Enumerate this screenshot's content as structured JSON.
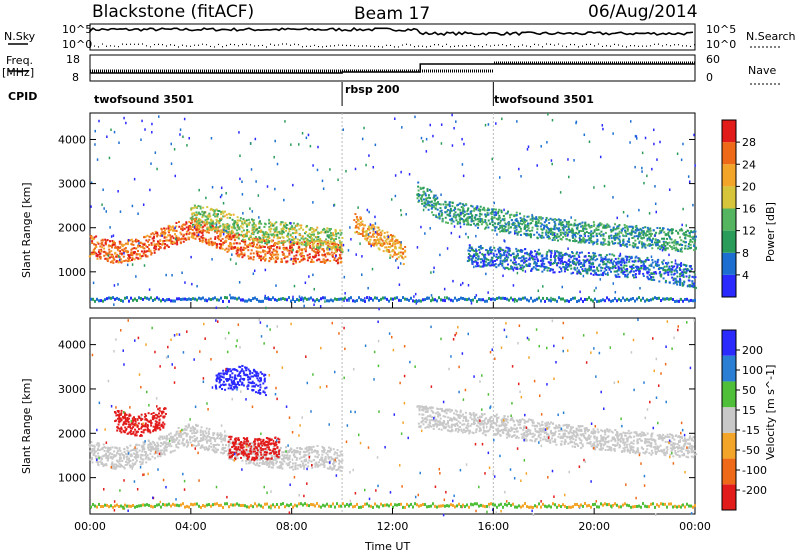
{
  "header": {
    "title_left": "Blackstone (fitACF)",
    "title_center": "Beam 17",
    "title_right": "06/Aug/2014"
  },
  "status_panel": {
    "nsky_label": "N.Sky",
    "nsearch_label": "N.Search",
    "freq_label": "Freq.",
    "freq_unit": "[MHz]",
    "nave_label": "Nave",
    "cpid_label": "CPID",
    "nsky_ticks": [
      "10^5",
      "10^0"
    ],
    "nsearch_ticks": [
      "10^5",
      "10^0"
    ],
    "freq_ticks": [
      "18",
      "8"
    ],
    "nave_ticks": [
      "60",
      "0"
    ],
    "cpid_segments": [
      {
        "label": "twofsound 3501",
        "start_hour": 0
      },
      {
        "label": "rbsp 200",
        "start_hour": 10
      },
      {
        "label": "twofsound 3501",
        "start_hour": 16
      }
    ]
  },
  "power_colorbar": {
    "label": "Power [dB]",
    "ticks": [
      "28",
      "24",
      "20",
      "16",
      "12",
      "8",
      "4"
    ],
    "colors": [
      "#2a2aff",
      "#1c6fd1",
      "#2a9c5a",
      "#54b45f",
      "#d6c43a",
      "#f3a52a",
      "#ee6a18",
      "#e21b1b"
    ]
  },
  "velocity_colorbar": {
    "label": "Velocity [m s^-1]",
    "ticks": [
      "200",
      "100",
      "50",
      "15",
      "-15",
      "-50",
      "-100",
      "-200"
    ],
    "colors": [
      "#e21b1b",
      "#ee6a18",
      "#f3a52a",
      "#c8c8c8",
      "#4fbf3a",
      "#2a7fd4",
      "#2a2aff"
    ]
  },
  "chart_data": [
    {
      "type": "heatmap",
      "name": "power",
      "ylabel": "Slant Range [km]",
      "xlabel": "Time UT",
      "x_ticks": [
        "00:00",
        "04:00",
        "08:00",
        "12:00",
        "16:00",
        "20:00",
        "00:00"
      ],
      "y_ticks": [
        1000,
        2000,
        3000,
        4000
      ],
      "xlim_hours": [
        0,
        24
      ],
      "ylim_km": [
        180,
        4600
      ],
      "echo_bands": [
        {
          "t": [
            0,
            1,
            2,
            3,
            4,
            5,
            6,
            7,
            8,
            9,
            10
          ],
          "range_km": [
            1600,
            1450,
            1550,
            1800,
            2000,
            1800,
            1600,
            1500,
            1450,
            1500,
            1400
          ],
          "power_db": 26
        },
        {
          "t": [
            4,
            5,
            6,
            7,
            8,
            9,
            10
          ],
          "range_km": [
            2300,
            2200,
            2000,
            1900,
            1900,
            1800,
            1700
          ],
          "power_db": 16
        },
        {
          "t": [
            10.5,
            11,
            12,
            12.5
          ],
          "range_km": [
            2100,
            1900,
            1600,
            1400
          ],
          "power_db": 22
        },
        {
          "t": [
            13,
            14,
            16,
            18,
            20,
            22,
            24
          ],
          "range_km": [
            2800,
            2400,
            2200,
            2000,
            1900,
            1800,
            1700
          ],
          "power_db": 10
        },
        {
          "t": [
            15,
            17,
            20,
            22,
            24
          ],
          "range_km": [
            1400,
            1300,
            1200,
            1100,
            900
          ],
          "power_db": 6
        }
      ]
    },
    {
      "type": "heatmap",
      "name": "velocity",
      "ylabel": "Slant Range [km]",
      "xlabel": "Time UT",
      "x_ticks": [
        "00:00",
        "04:00",
        "08:00",
        "12:00",
        "16:00",
        "20:00",
        "00:00"
      ],
      "y_ticks": [
        1000,
        2000,
        3000,
        4000
      ],
      "xlim_hours": [
        0,
        24
      ],
      "ylim_km": [
        180,
        4600
      ],
      "echo_bands": [
        {
          "t": [
            0,
            1,
            2,
            3,
            4,
            5,
            6,
            7,
            8,
            9,
            10
          ],
          "range_km": [
            1600,
            1450,
            1550,
            1800,
            2000,
            1800,
            1600,
            1500,
            1450,
            1500,
            1400
          ],
          "velocity_ms": 0
        },
        {
          "t": [
            1,
            2,
            3
          ],
          "range_km": [
            2300,
            2200,
            2400
          ],
          "velocity_ms": -200
        },
        {
          "t": [
            5,
            6,
            7
          ],
          "range_km": [
            3200,
            3300,
            3100
          ],
          "velocity_ms": 200
        },
        {
          "t": [
            5.5,
            6.5,
            7.5
          ],
          "range_km": [
            1700,
            1650,
            1700
          ],
          "velocity_ms": -200
        },
        {
          "t": [
            13,
            16,
            20,
            24
          ],
          "range_km": [
            2400,
            2200,
            1900,
            1700
          ],
          "velocity_ms": 0
        }
      ]
    }
  ]
}
